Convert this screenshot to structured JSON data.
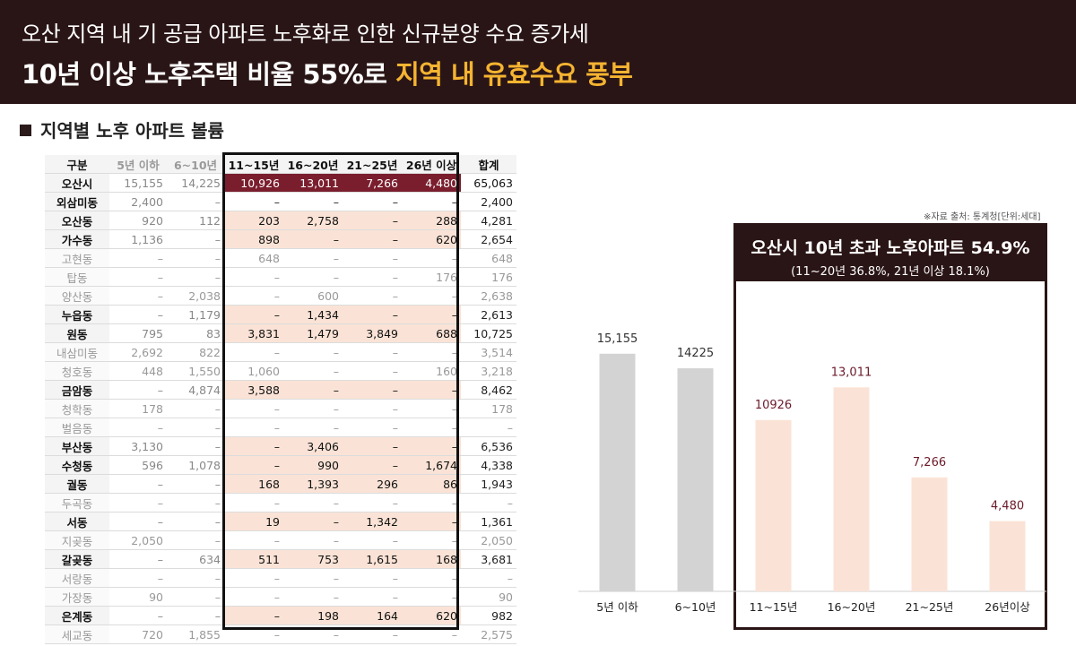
{
  "header": {
    "line1": "오산 지역 내 기 공급 아파트 노후화로 인한 신규분양 수요 증가세",
    "line2_plain": "10년 이상 노후주택 비율 55%로 ",
    "line2_highlight": "지역 내 유효수요 풍부"
  },
  "section_title": "지역별 노후 아파트 볼륨",
  "table": {
    "headers": [
      "구분",
      "5년 이하",
      "6~10년",
      "11~15년",
      "16~20년",
      "21~25년",
      "26년 이상",
      "합계"
    ],
    "rows": [
      {
        "name": "오산시",
        "style": "top",
        "cells": [
          "15,155",
          "14,225",
          "10,926",
          "13,011",
          "7,266",
          "4,480",
          "65,063"
        ]
      },
      {
        "name": "외삼미동",
        "style": "plain",
        "cells": [
          "2,400",
          "–",
          "–",
          "–",
          "–",
          "–",
          "2,400"
        ]
      },
      {
        "name": "오산동",
        "style": "hl",
        "cells": [
          "920",
          "112",
          "203",
          "2,758",
          "–",
          "288",
          "4,281"
        ]
      },
      {
        "name": "가수동",
        "style": "hl",
        "cells": [
          "1,136",
          "–",
          "898",
          "–",
          "–",
          "620",
          "2,654"
        ]
      },
      {
        "name": "고현동",
        "style": "dim",
        "cells": [
          "–",
          "–",
          "648",
          "–",
          "–",
          "–",
          "648"
        ]
      },
      {
        "name": "탑동",
        "style": "dim",
        "cells": [
          "–",
          "–",
          "–",
          "–",
          "–",
          "176",
          "176"
        ]
      },
      {
        "name": "양산동",
        "style": "dim",
        "cells": [
          "–",
          "2,038",
          "–",
          "600",
          "–",
          "–",
          "2,638"
        ]
      },
      {
        "name": "누읍동",
        "style": "hl",
        "cells": [
          "–",
          "1,179",
          "–",
          "1,434",
          "–",
          "–",
          "2,613"
        ]
      },
      {
        "name": "원동",
        "style": "hl",
        "cells": [
          "795",
          "83",
          "3,831",
          "1,479",
          "3,849",
          "688",
          "10,725"
        ]
      },
      {
        "name": "내삼미동",
        "style": "dim",
        "cells": [
          "2,692",
          "822",
          "–",
          "–",
          "–",
          "–",
          "3,514"
        ]
      },
      {
        "name": "청호동",
        "style": "dim",
        "cells": [
          "448",
          "1,550",
          "1,060",
          "–",
          "–",
          "160",
          "3,218"
        ]
      },
      {
        "name": "금암동",
        "style": "hl",
        "cells": [
          "–",
          "4,874",
          "3,588",
          "–",
          "–",
          "–",
          "8,462"
        ]
      },
      {
        "name": "청학동",
        "style": "dim",
        "cells": [
          "178",
          "–",
          "–",
          "–",
          "–",
          "–",
          "178"
        ]
      },
      {
        "name": "벌음동",
        "style": "dim",
        "cells": [
          "–",
          "–",
          "–",
          "–",
          "–",
          "–",
          "–"
        ]
      },
      {
        "name": "부산동",
        "style": "hl",
        "cells": [
          "3,130",
          "–",
          "–",
          "3,406",
          "–",
          "–",
          "6,536"
        ]
      },
      {
        "name": "수청동",
        "style": "hl",
        "cells": [
          "596",
          "1,078",
          "–",
          "990",
          "–",
          "1,674",
          "4,338"
        ]
      },
      {
        "name": "궐동",
        "style": "hl",
        "cells": [
          "–",
          "–",
          "168",
          "1,393",
          "296",
          "86",
          "1,943"
        ]
      },
      {
        "name": "두곡동",
        "style": "dim",
        "cells": [
          "–",
          "–",
          "–",
          "–",
          "–",
          "–",
          "–"
        ]
      },
      {
        "name": "서동",
        "style": "hl",
        "cells": [
          "–",
          "–",
          "19",
          "–",
          "1,342",
          "–",
          "1,361"
        ]
      },
      {
        "name": "지곶동",
        "style": "dim",
        "cells": [
          "2,050",
          "–",
          "–",
          "–",
          "–",
          "–",
          "2,050"
        ]
      },
      {
        "name": "갈곶동",
        "style": "hl",
        "cells": [
          "–",
          "634",
          "511",
          "753",
          "1,615",
          "168",
          "3,681"
        ]
      },
      {
        "name": "서랑동",
        "style": "dim",
        "cells": [
          "–",
          "–",
          "–",
          "–",
          "–",
          "–",
          "–"
        ]
      },
      {
        "name": "가장동",
        "style": "dim",
        "cells": [
          "90",
          "–",
          "–",
          "–",
          "–",
          "–",
          "90"
        ]
      },
      {
        "name": "은계동",
        "style": "hl",
        "cells": [
          "–",
          "–",
          "–",
          "198",
          "164",
          "620",
          "982"
        ]
      },
      {
        "name": "세교동",
        "style": "dim",
        "cells": [
          "720",
          "1,855",
          "–",
          "–",
          "–",
          "–",
          "2,575"
        ]
      }
    ]
  },
  "source_note": "※자료 출처: 통계청[단위:세대]",
  "highlight_box": {
    "title": "오산시 10년 초과 노후아파트 54.9%",
    "subtitle": "(11~20년 36.8%, 21년 이상 18.1%)"
  },
  "colors": {
    "banner": "#2a1516",
    "accent_yellow": "#f5b431",
    "top_row": "#7a1e2e",
    "highlight_row": "#fae3d6",
    "bar_gray": "#d4d3d3",
    "bar_peach": "#fae3d6",
    "label_maroon": "#6b1a2a"
  },
  "chart_data": {
    "type": "bar",
    "categories": [
      "5년 이하",
      "6~10년",
      "11~15년",
      "16~20년",
      "21~25년",
      "26년이상"
    ],
    "values": [
      15155,
      14225,
      10926,
      13011,
      7266,
      4480
    ],
    "value_labels": [
      "15,155",
      "14225",
      "10926",
      "13,011",
      "7,266",
      "4,480"
    ],
    "highlighted": [
      false,
      false,
      true,
      true,
      true,
      true
    ],
    "ylim": [
      0,
      16000
    ],
    "title": "",
    "xlabel": "",
    "ylabel": ""
  }
}
